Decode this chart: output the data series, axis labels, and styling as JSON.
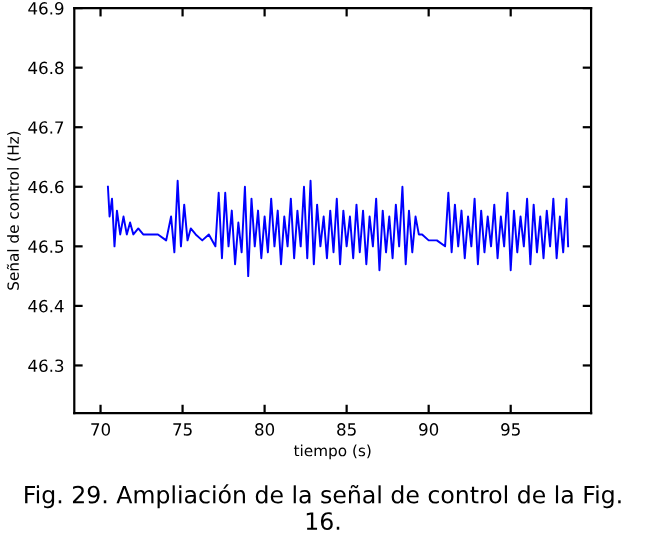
{
  "chart_data": {
    "type": "line",
    "xlabel": "tiempo (s)",
    "ylabel": "Señal de control (Hz)",
    "annotations": [
      "Fig. 29. Ampliación de la señal de control de la Fig. 16."
    ],
    "x": [
      70.45,
      70.55,
      70.7,
      70.85,
      71.0,
      71.2,
      71.4,
      71.6,
      71.8,
      72.0,
      72.3,
      72.6,
      73.0,
      73.5,
      74.0,
      74.3,
      74.5,
      74.7,
      74.9,
      75.1,
      75.3,
      75.5,
      75.8,
      76.2,
      76.6,
      77.0,
      77.2,
      77.4,
      77.6,
      77.8,
      78.0,
      78.2,
      78.4,
      78.6,
      78.8,
      79.0,
      79.2,
      79.4,
      79.6,
      79.8,
      80.0,
      80.2,
      80.4,
      80.6,
      80.8,
      81.0,
      81.2,
      81.4,
      81.6,
      81.8,
      82.0,
      82.2,
      82.4,
      82.6,
      82.8,
      83.0,
      83.2,
      83.4,
      83.6,
      83.8,
      84.0,
      84.2,
      84.4,
      84.6,
      84.8,
      85.0,
      85.2,
      85.4,
      85.6,
      85.8,
      86.0,
      86.2,
      86.4,
      86.6,
      86.8,
      87.0,
      87.2,
      87.4,
      87.6,
      87.8,
      88.0,
      88.2,
      88.4,
      88.6,
      88.8,
      89.0,
      89.2,
      89.4,
      89.6,
      90.0,
      90.5,
      91.0,
      91.2,
      91.4,
      91.6,
      91.8,
      92.0,
      92.2,
      92.4,
      92.6,
      92.8,
      93.0,
      93.2,
      93.4,
      93.6,
      93.8,
      94.0,
      94.2,
      94.4,
      94.6,
      94.8,
      95.0,
      95.2,
      95.4,
      95.6,
      95.8,
      96.0,
      96.2,
      96.4,
      96.6,
      96.8,
      97.0,
      97.2,
      97.4,
      97.6,
      97.8,
      98.0,
      98.2,
      98.4,
      98.5
    ],
    "values": [
      46.6,
      46.55,
      46.58,
      46.5,
      46.56,
      46.52,
      46.55,
      46.52,
      46.54,
      46.52,
      46.53,
      46.52,
      46.52,
      46.52,
      46.51,
      46.55,
      46.49,
      46.61,
      46.5,
      46.57,
      46.51,
      46.53,
      46.52,
      46.51,
      46.52,
      46.5,
      46.59,
      46.48,
      46.59,
      46.5,
      46.56,
      46.47,
      46.54,
      46.49,
      46.6,
      46.45,
      46.58,
      46.5,
      46.56,
      46.48,
      46.55,
      46.49,
      46.58,
      46.5,
      46.56,
      46.47,
      46.55,
      46.5,
      46.58,
      46.48,
      46.56,
      46.5,
      46.6,
      46.48,
      46.61,
      46.47,
      46.57,
      46.5,
      46.55,
      46.48,
      46.56,
      46.49,
      46.58,
      46.47,
      46.56,
      46.5,
      46.55,
      46.48,
      46.57,
      46.49,
      46.56,
      46.47,
      46.55,
      46.5,
      46.58,
      46.46,
      46.56,
      46.49,
      46.55,
      46.48,
      46.57,
      46.5,
      46.6,
      46.47,
      46.56,
      46.49,
      46.55,
      46.52,
      46.52,
      46.51,
      46.51,
      46.5,
      46.59,
      46.49,
      46.57,
      46.5,
      46.56,
      46.48,
      46.55,
      46.5,
      46.58,
      46.47,
      46.56,
      46.49,
      46.55,
      46.5,
      46.57,
      46.48,
      46.55,
      46.5,
      46.59,
      46.46,
      46.56,
      46.49,
      46.55,
      46.5,
      46.58,
      46.47,
      46.57,
      46.49,
      46.55,
      46.48,
      46.56,
      46.5,
      46.58,
      46.48,
      46.55,
      46.49,
      46.58,
      46.5
    ],
    "color": "#0000ff",
    "xlim": [
      68.4,
      99.9
    ],
    "ylim": [
      46.22,
      46.9
    ],
    "xticks": [
      70,
      75,
      80,
      85,
      90,
      95
    ],
    "yticks": [
      46.3,
      46.4,
      46.5,
      46.6,
      46.7,
      46.8,
      46.9
    ],
    "grid": false
  }
}
